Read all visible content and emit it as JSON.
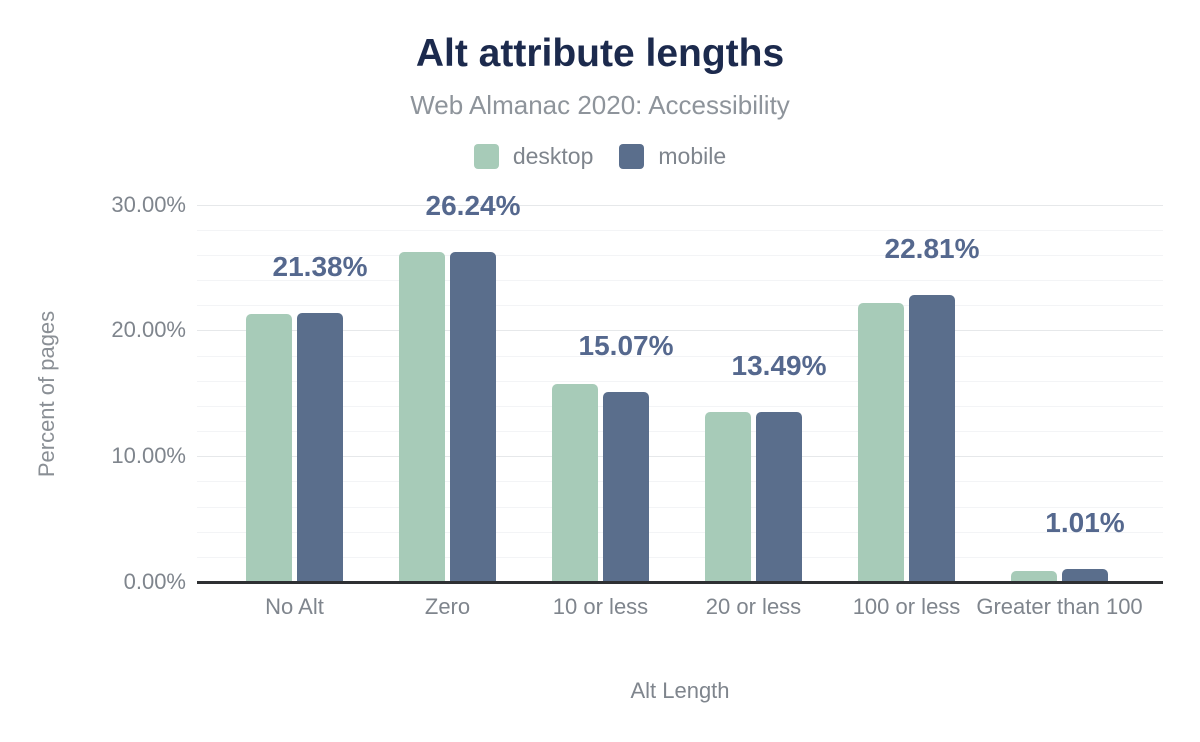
{
  "header": {
    "title": "Alt attribute lengths",
    "subtitle": "Web Almanac 2020: Accessibility"
  },
  "chart_data": {
    "type": "bar",
    "title": "Alt attribute lengths",
    "subtitle": "Web Almanac 2020: Accessibility",
    "categories": [
      "No Alt",
      "Zero",
      "10 or less",
      "20 or less",
      "100 or less",
      "Greater than 100"
    ],
    "series": [
      {
        "name": "desktop",
        "color": "#a7cbb8",
        "values": [
          21.3,
          26.2,
          15.7,
          13.5,
          22.2,
          0.9
        ]
      },
      {
        "name": "mobile",
        "color": "#5a6e8c",
        "values": [
          21.38,
          26.24,
          15.07,
          13.49,
          22.81,
          1.01
        ]
      }
    ],
    "data_labels": [
      "21.38%",
      "26.24%",
      "15.07%",
      "13.49%",
      "22.81%",
      "1.01%"
    ],
    "xlabel": "Alt Length",
    "ylabel": "Percent of pages",
    "y_ticks": [
      {
        "value": 0,
        "label": "0.00%"
      },
      {
        "value": 10,
        "label": "10.00%"
      },
      {
        "value": 20,
        "label": "20.00%"
      },
      {
        "value": 30,
        "label": "30.00%"
      }
    ],
    "ylim": [
      0,
      30
    ],
    "minor_grid_step": 2,
    "grid": true,
    "legend_position": "top"
  },
  "colors": {
    "title": "#1c2a4d",
    "subtitle": "#8e949b",
    "axis_text": "#7f858d",
    "data_label": "#55688e",
    "grid_major": "#e6e8ea",
    "grid_minor": "#f3f4f6",
    "axis_line": "#2e3033",
    "background": "#ffffff"
  }
}
